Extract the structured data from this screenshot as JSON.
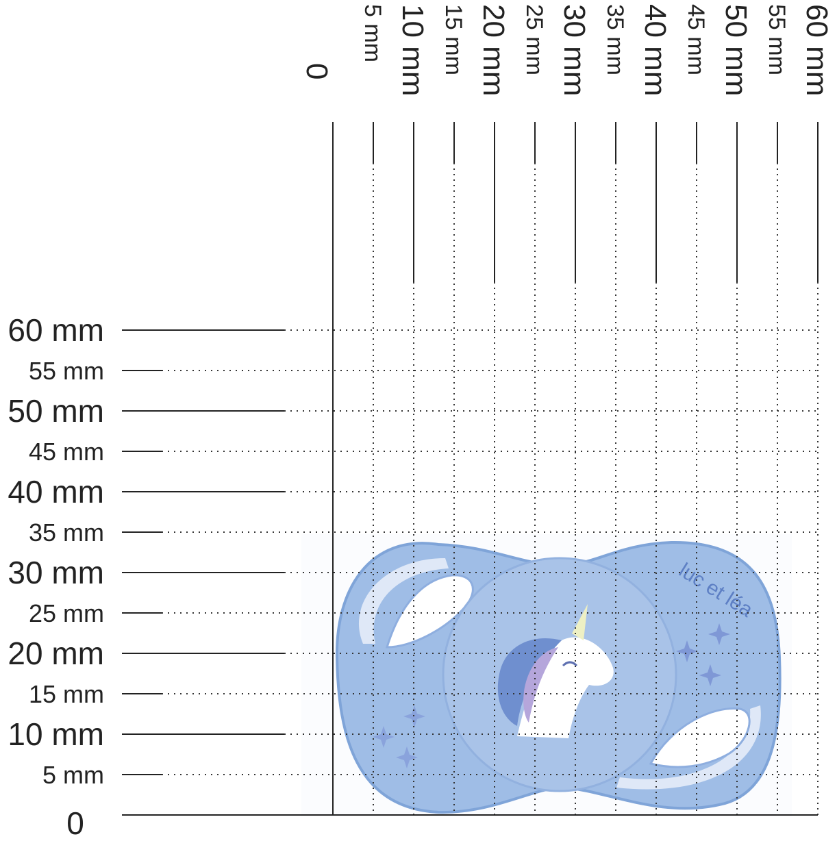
{
  "figure": {
    "title": "",
    "subtitle": ""
  },
  "scale": {
    "unit": "mm",
    "origin_label": "0",
    "x_ticks": [
      {
        "value": 5,
        "label": "5 mm",
        "major": false
      },
      {
        "value": 10,
        "label": "10 mm",
        "major": true
      },
      {
        "value": 15,
        "label": "15 mm",
        "major": false
      },
      {
        "value": 20,
        "label": "20 mm",
        "major": true
      },
      {
        "value": 25,
        "label": "25 mm",
        "major": false
      },
      {
        "value": 30,
        "label": "30 mm",
        "major": true
      },
      {
        "value": 35,
        "label": "35 mm",
        "major": false
      },
      {
        "value": 40,
        "label": "40 mm",
        "major": true
      },
      {
        "value": 45,
        "label": "45 mm",
        "major": false
      },
      {
        "value": 50,
        "label": "50 mm",
        "major": true
      },
      {
        "value": 55,
        "label": "55 mm",
        "major": false
      },
      {
        "value": 60,
        "label": "60 mm",
        "major": true
      }
    ],
    "y_ticks": [
      {
        "value": 5,
        "label": "5 mm",
        "major": false
      },
      {
        "value": 10,
        "label": "10 mm",
        "major": true
      },
      {
        "value": 15,
        "label": "15 mm",
        "major": false
      },
      {
        "value": 20,
        "label": "20 mm",
        "major": true
      },
      {
        "value": 25,
        "label": "25 mm",
        "major": false
      },
      {
        "value": 30,
        "label": "30 mm",
        "major": true
      },
      {
        "value": 35,
        "label": "35 mm",
        "major": false
      },
      {
        "value": 40,
        "label": "40 mm",
        "major": true
      },
      {
        "value": 45,
        "label": "45 mm",
        "major": false
      },
      {
        "value": 50,
        "label": "50 mm",
        "major": true
      },
      {
        "value": 55,
        "label": "55 mm",
        "major": false
      },
      {
        "value": 60,
        "label": "60 mm",
        "major": true
      }
    ]
  },
  "product": {
    "brand_mark": "luc et léa",
    "depicted": "pacifier-shield",
    "decoration": "unicorn-head",
    "colors": {
      "shield": "#9fbde6",
      "shield_edge": "#7fa4d8",
      "highlight": "#dfe8f7",
      "nipple_disc": "#a9c3e8",
      "unicorn_mane_blue": "#6f8fcf",
      "unicorn_mane_purple": "#b5a6db",
      "unicorn_horn": "#eef0c4",
      "sparkle": "#7f98d6"
    }
  },
  "colors": {
    "axis_line": "#222222",
    "grid_dots": "#333333",
    "background": "#ffffff"
  }
}
